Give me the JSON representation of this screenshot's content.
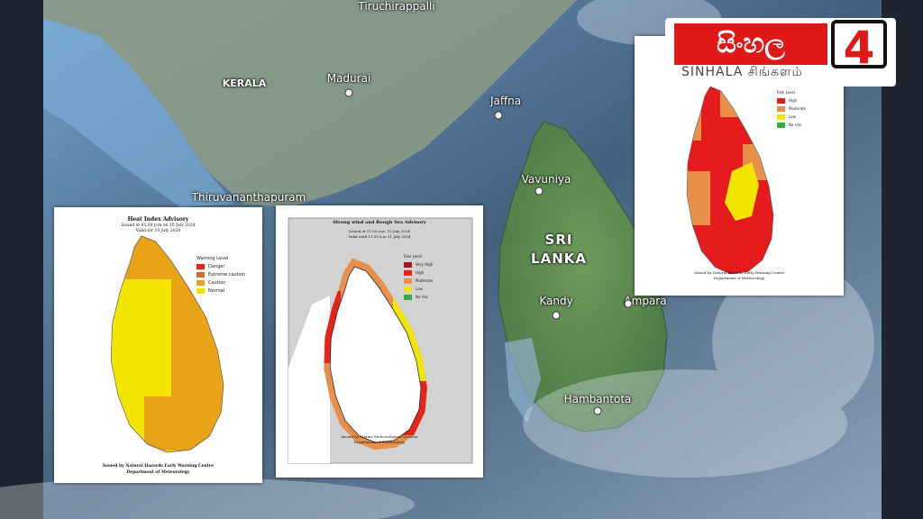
{
  "map": {
    "labels": {
      "tiruchirappalli": "Tiruchirappalli",
      "kerala": "KERALA",
      "madurai": "Madurai",
      "jaffna": "Jaffna",
      "thiruvananthapuram": "Thiruvananthapuram",
      "vavuniya": "Vavuniya",
      "sri": "SRI",
      "lanka": "LANKA",
      "kandy": "Kandy",
      "ampara": "Ampara",
      "hambantota": "Hambantota"
    }
  },
  "logo": {
    "title": "සිංහල",
    "number": "4",
    "subtitle": "SINHALA சிங்களம்"
  },
  "insets": [
    {
      "title": "Heat Index Advisory",
      "issued": "Issued at 05.00 p.m on 10 July 2024",
      "valid": "Valid for 10 July 2024",
      "legend_title": "Warning Level",
      "legend": [
        "Danger",
        "Extreme caution",
        "Caution",
        "Normal"
      ],
      "footer": [
        "Issued by Natural Hazards Early Warning Centre",
        "Department of Meteorology"
      ]
    },
    {
      "title": "Strong wind and Rough Sea Advisory",
      "issued": "Issued at 11.00 a.m. 10 July 2024",
      "valid": "Valid until 11.00 a.m 11 July 2024",
      "legend_title": "Risk Level",
      "legend": [
        "Very High",
        "High",
        "Moderate",
        "Low",
        "No risk"
      ],
      "footer": [
        "Issued by Marine Meteorological Division",
        "Department of Meteorology"
      ]
    },
    {
      "legend_title": "Risk Level",
      "legend": [
        "High",
        "Moderate",
        "Low",
        "No risk"
      ],
      "footer": [
        "Issued by Natural Hazards Early Warning Centre",
        "Department of Meteorology"
      ]
    }
  ]
}
